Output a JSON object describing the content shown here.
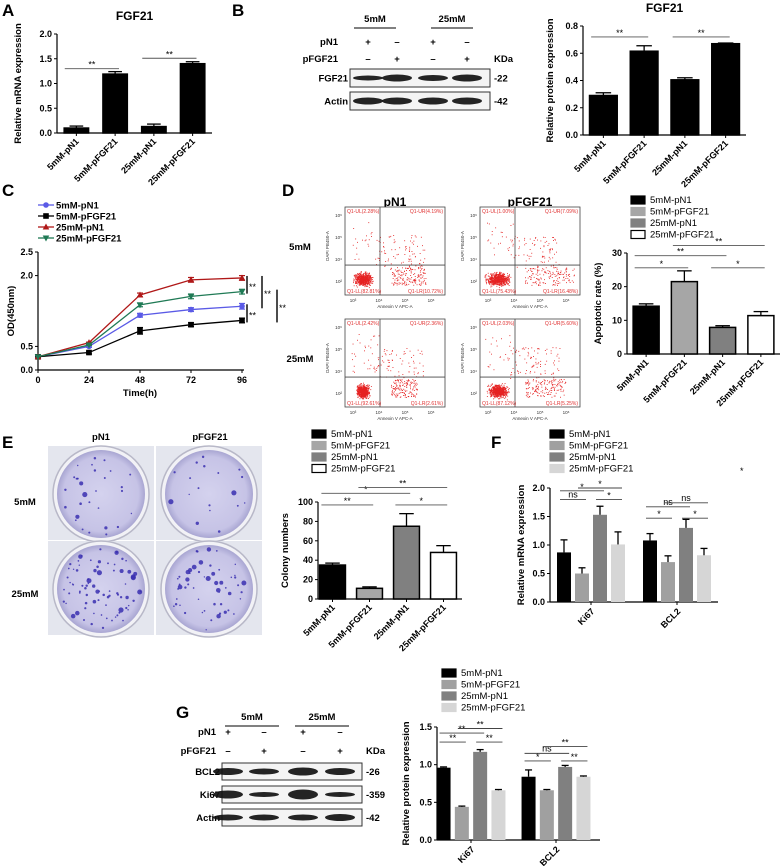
{
  "panel_labels": {
    "A": "A",
    "B": "B",
    "C": "C",
    "D": "D",
    "E": "E",
    "F": "F",
    "G": "G"
  },
  "stray_mark": "*",
  "chart_data": [
    {
      "id": "A",
      "type": "bar",
      "title": "FGF21",
      "xlabel": "",
      "ylabel": "Relative mRNA expression",
      "categories": [
        "5mM-pN1",
        "5mM-pFGF21",
        "25mM-pN1",
        "25mM-pFGF21"
      ],
      "values": [
        0.1,
        1.19,
        0.13,
        1.4
      ],
      "errors": [
        0.04,
        0.05,
        0.05,
        0.04
      ],
      "ylim": [
        0,
        2.0
      ],
      "yticks": [
        "0.0",
        "0.5",
        "1.0",
        "1.5",
        "2.0"
      ],
      "colors": [
        "#000000",
        "#000000",
        "#000000",
        "#000000"
      ],
      "significance": [
        {
          "from": 0,
          "to": 1,
          "y": 1.3,
          "label": "**"
        },
        {
          "from": 2,
          "to": 3,
          "y": 1.51,
          "label": "**"
        }
      ]
    },
    {
      "id": "B",
      "type": "bar",
      "title": "FGF21",
      "xlabel": "",
      "ylabel": "Relative protein expression",
      "categories": [
        "5mM-pN1",
        "5mM-pFGF21",
        "25mM-pN1",
        "25mM-pFGF21"
      ],
      "values": [
        0.29,
        0.615,
        0.405,
        0.67
      ],
      "errors": [
        0.02,
        0.04,
        0.015,
        0.005
      ],
      "ylim": [
        0,
        0.8
      ],
      "yticks": [
        "0.0",
        "0.2",
        "0.4",
        "0.6",
        "0.8"
      ],
      "colors": [
        "#000000",
        "#000000",
        "#000000",
        "#000000"
      ],
      "significance": [
        {
          "from": 0,
          "to": 1,
          "y": 0.72,
          "label": "**"
        },
        {
          "from": 2,
          "to": 3,
          "y": 0.72,
          "label": "**"
        }
      ]
    },
    {
      "id": "C",
      "type": "line",
      "title": "",
      "xlabel": "Time(h)",
      "ylabel": "OD(450nm)",
      "x": [
        0,
        24,
        48,
        72,
        96
      ],
      "xticks": [
        "0",
        "24",
        "48",
        "72",
        "96"
      ],
      "ylim": [
        0,
        2.5
      ],
      "ytick_values": [
        0,
        0.5,
        2.0,
        2.5
      ],
      "yticks": [
        "0.0",
        "0.5",
        "2.0",
        "2.5"
      ],
      "legend_position": "top-left",
      "series": [
        {
          "name": "5mM-pN1",
          "color": "#5a5ae6",
          "marker": "circle",
          "values": [
            0.28,
            0.5,
            1.16,
            1.28,
            1.35
          ],
          "errors": [
            0,
            0.02,
            0.04,
            0.04,
            0.06
          ]
        },
        {
          "name": "5mM-pFGF21",
          "color": "#000000",
          "marker": "square",
          "values": [
            0.28,
            0.37,
            0.83,
            0.96,
            1.05
          ],
          "errors": [
            0,
            0.03,
            0.07,
            0.04,
            0.05
          ]
        },
        {
          "name": "25mM-pN1",
          "color": "#b01818",
          "marker": "triangle-up",
          "values": [
            0.28,
            0.58,
            1.59,
            1.91,
            1.95
          ],
          "errors": [
            0,
            0.01,
            0.04,
            0.05,
            0.05
          ]
        },
        {
          "name": "25mM-pFGF21",
          "color": "#1f7a55",
          "marker": "triangle-down",
          "values": [
            0.28,
            0.53,
            1.38,
            1.56,
            1.66
          ],
          "errors": [
            0,
            0.01,
            0.04,
            0.05,
            0.05
          ]
        }
      ],
      "significance": [
        {
          "from": 2,
          "to": 3,
          "label": "**"
        },
        {
          "from": 2,
          "to": 0,
          "label": "**"
        },
        {
          "from": 0,
          "to": 1,
          "label": "**"
        },
        {
          "from": 3,
          "to": 1,
          "label": "**"
        }
      ]
    },
    {
      "id": "D",
      "type": "bar",
      "title": "",
      "xlabel": "",
      "ylabel": "Apoptotic rate (%)",
      "categories": [
        "5mM-pN1",
        "5mM-pFGF21",
        "25mM-pN1",
        "25mM-pFGF21"
      ],
      "values": [
        14.2,
        21.5,
        7.9,
        11.4
      ],
      "errors": [
        0.7,
        3.2,
        0.5,
        1.2
      ],
      "ylim": [
        0,
        30
      ],
      "yticks": [
        "0",
        "10",
        "20",
        "30"
      ],
      "colors": [
        "#000000",
        "#a6a6a6",
        "#808080",
        "#ffffff"
      ],
      "legend": [
        "5mM-pN1",
        "5mM-pFGF21",
        "25mM-pN1",
        "25mM-pFGF21"
      ],
      "legend_position": "top",
      "significance": [
        {
          "from": 0,
          "to": 1,
          "y": 25.6,
          "label": "*"
        },
        {
          "from": 0,
          "to": 2,
          "y": 29.2,
          "label": "**"
        },
        {
          "from": 1,
          "to": 3,
          "y": 32.2,
          "label": "**"
        },
        {
          "from": 2,
          "to": 3,
          "y": 25.6,
          "label": "*"
        }
      ]
    },
    {
      "id": "E",
      "type": "bar",
      "title": "",
      "xlabel": "",
      "ylabel": "Colony numbers",
      "categories": [
        "5mM-pN1",
        "5mM-pFGF21",
        "25mM-pN1",
        "25mM-pFGF21"
      ],
      "values": [
        35,
        11,
        75,
        48
      ],
      "errors": [
        2,
        1.5,
        13,
        7
      ],
      "ylim": [
        0,
        100
      ],
      "yticks": [
        "0",
        "20",
        "40",
        "60",
        "80",
        "100"
      ],
      "colors": [
        "#000000",
        "#a6a6a6",
        "#808080",
        "#ffffff"
      ],
      "legend": [
        "5mM-pN1",
        "5mM-pFGF21",
        "25mM-pN1",
        "25mM-pFGF21"
      ],
      "legend_position": "top",
      "significance": [
        {
          "from": 0,
          "to": 1,
          "y": 97,
          "label": "**"
        },
        {
          "from": 0,
          "to": 2,
          "y": 109,
          "label": "*"
        },
        {
          "from": 1,
          "to": 3,
          "y": 115,
          "label": "**"
        },
        {
          "from": 2,
          "to": 3,
          "y": 97,
          "label": "*"
        }
      ]
    },
    {
      "id": "F",
      "type": "bar",
      "title": "",
      "xlabel": "",
      "ylabel": "Relative mRNA expression",
      "categories": [
        "Ki67",
        "BCL2"
      ],
      "ylim": [
        0,
        2.0
      ],
      "yticks": [
        "0.0",
        "0.5",
        "1.0",
        "1.5",
        "2.0"
      ],
      "legend_position": "top",
      "series": [
        {
          "name": "5mM-pN1",
          "color": "#000000",
          "values": [
            0.87,
            1.08
          ],
          "errors": [
            0.22,
            0.12
          ]
        },
        {
          "name": "5mM-pFGF21",
          "color": "#a0a0a0",
          "values": [
            0.5,
            0.7
          ],
          "errors": [
            0.1,
            0.11
          ]
        },
        {
          "name": "25mM-pN1",
          "color": "#808080",
          "values": [
            1.53,
            1.3
          ],
          "errors": [
            0.15,
            0.15
          ]
        },
        {
          "name": "25mM-pFGF21",
          "color": "#d6d6d6",
          "values": [
            1.01,
            0.82
          ],
          "errors": [
            0.22,
            0.12
          ]
        }
      ],
      "significance": [
        {
          "group": 0,
          "from": 0,
          "to": 1,
          "y": 1.8,
          "label": "ns"
        },
        {
          "group": 0,
          "from": 0,
          "to": 2,
          "y": 1.95,
          "label": "*"
        },
        {
          "group": 0,
          "from": 1,
          "to": 3,
          "y": 2.0,
          "label": "*"
        },
        {
          "group": 0,
          "from": 2,
          "to": 3,
          "y": 1.8,
          "label": "*"
        },
        {
          "group": 1,
          "from": 0,
          "to": 2,
          "y": 1.67,
          "label": "ns"
        },
        {
          "group": 1,
          "from": 1,
          "to": 3,
          "y": 1.74,
          "label": "ns"
        },
        {
          "group": 1,
          "from": 0,
          "to": 1,
          "y": 1.47,
          "label": "*"
        },
        {
          "group": 1,
          "from": 2,
          "to": 3,
          "y": 1.47,
          "label": "*"
        }
      ]
    },
    {
      "id": "G",
      "type": "bar",
      "title": "",
      "xlabel": "",
      "ylabel": "Relative protein expression",
      "categories": [
        "Ki67",
        "BCL2"
      ],
      "ylim": [
        0,
        1.5
      ],
      "yticks": [
        "0.0",
        "0.5",
        "1.0",
        "1.5"
      ],
      "legend_position": "top",
      "series": [
        {
          "name": "5mM-pN1",
          "color": "#000000",
          "values": [
            0.96,
            0.84
          ],
          "errors": [
            0.01,
            0.09
          ]
        },
        {
          "name": "5mM-pFGF21",
          "color": "#a0a0a0",
          "values": [
            0.44,
            0.66
          ],
          "errors": [
            0.01,
            0.01
          ]
        },
        {
          "name": "25mM-pN1",
          "color": "#808080",
          "values": [
            1.17,
            0.97
          ],
          "errors": [
            0.03,
            0.02
          ]
        },
        {
          "name": "25mM-pFGF21",
          "color": "#d6d6d6",
          "values": [
            0.66,
            0.84
          ],
          "errors": [
            0.01,
            0.01
          ]
        }
      ],
      "significance": [
        {
          "group": 0,
          "from": 0,
          "to": 2,
          "y": 1.42,
          "label": "**"
        },
        {
          "group": 0,
          "from": 1,
          "to": 3,
          "y": 1.48,
          "label": "**"
        },
        {
          "group": 0,
          "from": 0,
          "to": 1,
          "y": 1.3,
          "label": "**"
        },
        {
          "group": 0,
          "from": 2,
          "to": 3,
          "y": 1.3,
          "label": "**"
        },
        {
          "group": 1,
          "from": 0,
          "to": 2,
          "y": 1.15,
          "label": "ns"
        },
        {
          "group": 1,
          "from": 1,
          "to": 3,
          "y": 1.24,
          "label": "**"
        },
        {
          "group": 1,
          "from": 0,
          "to": 1,
          "y": 1.05,
          "label": "*"
        },
        {
          "group": 1,
          "from": 2,
          "to": 3,
          "y": 1.05,
          "label": "**"
        }
      ]
    }
  ],
  "blot_B": {
    "groups": [
      "5mM",
      "25mM"
    ],
    "row_labels": [
      "pN1",
      "pFGF21"
    ],
    "pN1_signs": [
      "+",
      "–",
      "+",
      "–"
    ],
    "pFGF21_signs": [
      "–",
      "+",
      "–",
      "+"
    ],
    "kda_label": "KDa",
    "bands": [
      {
        "name": "FGF21",
        "kda": "-22"
      },
      {
        "name": "Actin",
        "kda": "-42"
      }
    ]
  },
  "flow_D": {
    "columns": [
      "pN1",
      "pFGF21"
    ],
    "rows": [
      "5mM",
      "25mM"
    ],
    "xaxis_label": "Annexin V APC-A",
    "yaxis_label": "DAPI PB450-A",
    "xticks": [
      "10³",
      "10⁴",
      "10⁵",
      "10⁶"
    ],
    "yticks": [
      "10²",
      "10⁴",
      "10⁵",
      "10⁶"
    ],
    "plots": [
      {
        "UL": "Q1-UL(2.28%)",
        "UR": "Q1-UR(4.19%)",
        "LL": "Q1-LL(82.81%)",
        "LR": "Q1-LR(10.72%)"
      },
      {
        "UL": "Q1-UL(1.00%)",
        "UR": "Q1-UR(7.09%)",
        "LL": "Q1-LL(75.43%)",
        "LR": "Q1-LR(16.48%)"
      },
      {
        "UL": "Q1-UL(2.42%)",
        "UR": "Q1-UR(2.36%)",
        "LL": "Q1-LL(92.61%)",
        "LR": "Q1-LR(2.61%)"
      },
      {
        "UL": "Q1-UL(2.03%)",
        "UR": "Q1-UR(5.60%)",
        "LL": "Q1-LL(87.12%)",
        "LR": "Q1-LR(5.25%)"
      }
    ]
  },
  "colony_E": {
    "columns": [
      "pN1",
      "pFGF21"
    ],
    "rows": [
      "5mM",
      "25mM"
    ],
    "stain_color": "#3a2fb0"
  },
  "blot_G": {
    "groups": [
      "5mM",
      "25mM"
    ],
    "row_labels": [
      "pN1",
      "pFGF21"
    ],
    "pN1_signs": [
      "+",
      "–",
      "+",
      "–"
    ],
    "pFGF21_signs": [
      "–",
      "+",
      "–",
      "+"
    ],
    "kda_label": "KDa",
    "bands": [
      {
        "name": "BCL2",
        "kda": "-26"
      },
      {
        "name": "Ki67",
        "kda": "-359"
      },
      {
        "name": "Actin",
        "kda": "-42"
      }
    ]
  }
}
